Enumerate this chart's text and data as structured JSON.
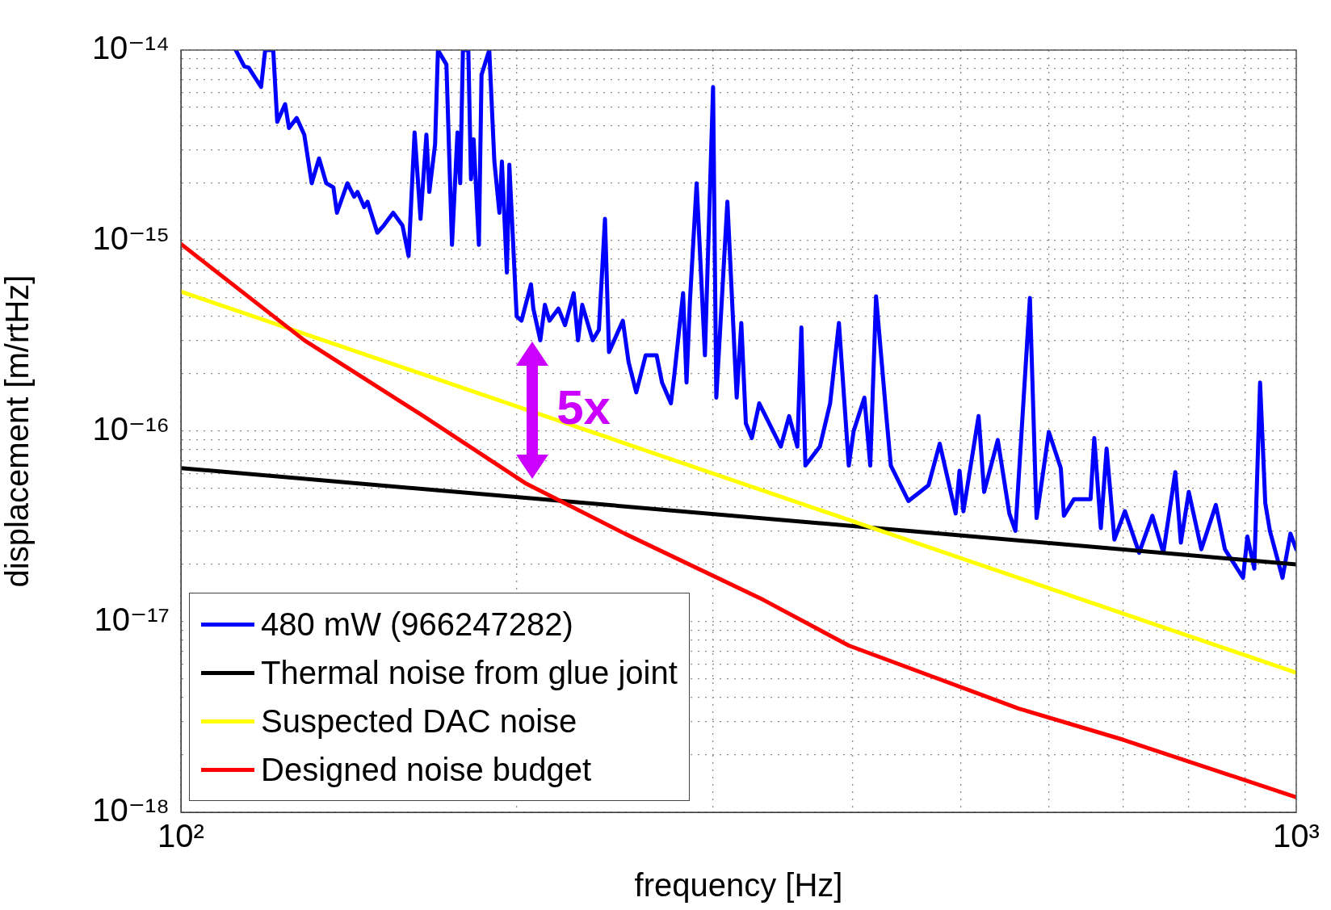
{
  "chart_data": {
    "type": "line",
    "xlabel": "frequency [Hz]",
    "ylabel": "displacement [m/rtHz]",
    "log": "xy",
    "grid": true,
    "legend": "bottom left",
    "xlim": [
      100,
      1000
    ],
    "ylim": [
      1e-18,
      1e-14
    ],
    "xticks": [
      {
        "value": 100,
        "label": "10²"
      },
      {
        "value": 200,
        "label": null
      },
      {
        "value": 300,
        "label": null
      },
      {
        "value": 400,
        "label": null
      },
      {
        "value": 500,
        "label": null
      },
      {
        "value": 600,
        "label": null
      },
      {
        "value": 700,
        "label": null
      },
      {
        "value": 800,
        "label": null
      },
      {
        "value": 900,
        "label": null
      },
      {
        "value": 1000,
        "label": "10³"
      }
    ],
    "yticks": [
      {
        "value": 1e-18,
        "label": "10⁻¹⁸"
      },
      {
        "value": 2e-18,
        "label": null
      },
      {
        "value": 3e-18,
        "label": null
      },
      {
        "value": 4e-18,
        "label": null
      },
      {
        "value": 5e-18,
        "label": null
      },
      {
        "value": 6e-18,
        "label": null
      },
      {
        "value": 7e-18,
        "label": null
      },
      {
        "value": 8e-18,
        "label": null
      },
      {
        "value": 9e-18,
        "label": null
      },
      {
        "value": 1e-17,
        "label": "10⁻¹⁷"
      },
      {
        "value": 2e-17,
        "label": null
      },
      {
        "value": 3e-17,
        "label": null
      },
      {
        "value": 4e-17,
        "label": null
      },
      {
        "value": 5e-17,
        "label": null
      },
      {
        "value": 6e-17,
        "label": null
      },
      {
        "value": 7e-17,
        "label": null
      },
      {
        "value": 8e-17,
        "label": null
      },
      {
        "value": 9e-17,
        "label": null
      },
      {
        "value": 1e-16,
        "label": "10⁻¹⁶"
      },
      {
        "value": 2e-16,
        "label": null
      },
      {
        "value": 3e-16,
        "label": null
      },
      {
        "value": 4e-16,
        "label": null
      },
      {
        "value": 5e-16,
        "label": null
      },
      {
        "value": 6e-16,
        "label": null
      },
      {
        "value": 7e-16,
        "label": null
      },
      {
        "value": 8e-16,
        "label": null
      },
      {
        "value": 9e-16,
        "label": null
      },
      {
        "value": 1e-15,
        "label": "10⁻¹⁵"
      },
      {
        "value": 2e-15,
        "label": null
      },
      {
        "value": 3e-15,
        "label": null
      },
      {
        "value": 4e-15,
        "label": null
      },
      {
        "value": 5e-15,
        "label": null
      },
      {
        "value": 6e-15,
        "label": null
      },
      {
        "value": 7e-15,
        "label": null
      },
      {
        "value": 8e-15,
        "label": null
      },
      {
        "value": 9e-15,
        "label": null
      },
      {
        "value": 1e-14,
        "label": "10⁻¹⁴"
      }
    ],
    "annotations": [
      "5x"
    ],
    "series": [
      {
        "name": "480 mW (966247282)",
        "color": "#0000ff",
        "x": [
          112,
          114,
          115,
          118,
          119,
          121,
          122,
          124,
          125,
          127,
          129,
          131,
          133,
          135,
          137,
          138,
          141,
          143,
          144,
          146,
          147,
          150,
          152,
          155,
          158,
          160,
          162,
          164,
          166,
          167,
          169,
          170,
          173,
          175,
          177,
          178,
          179,
          181,
          182,
          183,
          185,
          186,
          189,
          191,
          193,
          194,
          196,
          197,
          200,
          202,
          206,
          207,
          210,
          212,
          214,
          218,
          221,
          225,
          227,
          229,
          234,
          237,
          240,
          242,
          249,
          252,
          256,
          261,
          267,
          270,
          275,
          277,
          282,
          284,
          286,
          290,
          295,
          300,
          302,
          309,
          315,
          318,
          321,
          325,
          330,
          345,
          351,
          357,
          360,
          363,
          374,
          382,
          389,
          397,
          401,
          410,
          415,
          420,
          429,
          433,
          449,
          468,
          479,
          495,
          499,
          503,
          519,
          525,
          540,
          553,
          560,
          577,
          585,
          600,
          615,
          619,
          632,
          654,
          659,
          668,
          676,
          687,
          702,
          723,
          743,
          760,
          779,
          788,
          801,
          822,
          847,
          863,
          896,
          904,
          917,
          928,
          938,
          947,
          972,
          988,
          1000
        ],
        "values": [
          1e-14,
          8.2e-15,
          8.1e-15,
          6.4e-15,
          1e-14,
          1e-14,
          4.2e-15,
          5.2e-15,
          3.9e-15,
          4.4e-15,
          3.6e-15,
          2e-15,
          2.7e-15,
          2e-15,
          1.9e-15,
          1.4e-15,
          2e-15,
          1.7e-15,
          1.8e-15,
          1.5e-15,
          1.6e-15,
          1.1e-15,
          1.2e-15,
          1.4e-15,
          1.2e-15,
          8.3e-16,
          3.7e-15,
          1.3e-15,
          3.6e-15,
          1.8e-15,
          3.2e-15,
          1e-14,
          8.4e-15,
          9.5e-16,
          3.7e-15,
          2e-15,
          1e-14,
          1e-14,
          2.1e-15,
          3.4e-15,
          9.5e-16,
          7.4e-15,
          1e-14,
          2.6e-15,
          1.4e-15,
          2.6e-15,
          6.8e-16,
          2.5e-15,
          4e-16,
          3.8e-16,
          5.9e-16,
          4.4e-16,
          3e-16,
          4.6e-16,
          3.8e-16,
          4.4e-16,
          3.6e-16,
          5.3e-16,
          3e-16,
          4.6e-16,
          3e-16,
          3.4e-16,
          1.3e-15,
          2.6e-16,
          3.8e-16,
          2.3e-16,
          1.6e-16,
          2.5e-16,
          2.5e-16,
          1.8e-16,
          1.4e-16,
          2e-16,
          5.3e-16,
          1.8e-16,
          4.8e-16,
          2e-15,
          2.5e-16,
          6.4e-15,
          1.5e-16,
          1.6e-15,
          1.5e-16,
          3.7e-16,
          1.1e-16,
          9.2e-17,
          1.4e-16,
          8.3e-17,
          1.2e-16,
          8.3e-17,
          3.5e-16,
          6.6e-17,
          8.3e-17,
          1.4e-16,
          3.7e-16,
          6.6e-17,
          1e-16,
          1.5e-16,
          6.6e-17,
          5.1e-16,
          1.2e-16,
          6.6e-17,
          4.3e-17,
          5.2e-17,
          8.6e-17,
          3.7e-17,
          6.2e-17,
          3.8e-17,
          1.2e-16,
          4.8e-17,
          9e-17,
          3.7e-17,
          3e-17,
          5e-16,
          3.5e-17,
          9.9e-17,
          6.4e-17,
          3.6e-17,
          4.4e-17,
          4.4e-17,
          9.2e-17,
          3.1e-17,
          8.1e-17,
          2.7e-17,
          3.8e-17,
          2.3e-17,
          3.6e-17,
          2.3e-17,
          6.1e-17,
          2.6e-17,
          4.8e-17,
          2.4e-17,
          4.1e-17,
          2.4e-17,
          1.7e-17,
          2.8e-17,
          1.9e-17,
          1.8e-16,
          4.2e-17,
          3e-17,
          1.7e-17,
          2.9e-17,
          2.4e-17
        ]
      },
      {
        "name": "Thermal noise from glue joint",
        "color": "#000000",
        "x": [
          100,
          1000
        ],
        "values": [
          6.4e-17,
          2e-17
        ]
      },
      {
        "name": "Suspected DAC noise",
        "color": "#ffff00",
        "x": [
          100,
          1000
        ],
        "values": [
          5.4e-16,
          5.4e-18
        ]
      },
      {
        "name": "Designed noise budget",
        "color": "#ff0000",
        "x": [
          100,
          129,
          165,
          204,
          250,
          333,
          397,
          564,
          700,
          1000
        ],
        "values": [
          9.6e-16,
          3e-16,
          1.2e-16,
          5.3e-17,
          2.9e-17,
          1.3e-17,
          7.5e-18,
          3.5e-18,
          2.4e-18,
          1.2e-18
        ]
      }
    ]
  }
}
